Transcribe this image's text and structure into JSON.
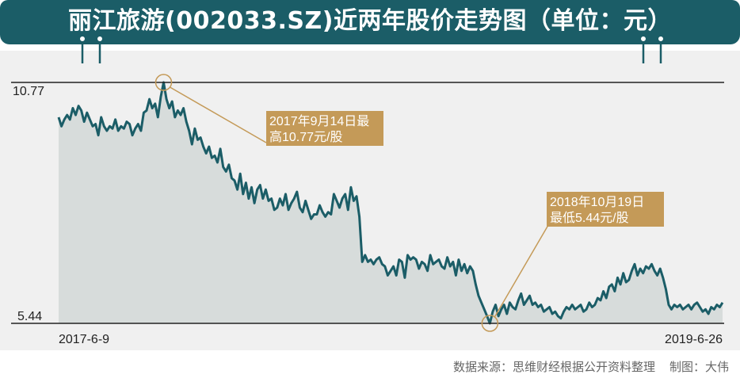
{
  "title": "丽江旅游(002033.SZ)近两年股价走势图（单位：元）",
  "source": "数据来源：思维财经根据公开资料整理",
  "author": "制图：大伟",
  "colors": {
    "banner": "#1b5d67",
    "line": "#1b5d67",
    "area": "#d7dcdb",
    "panel": "#f0f0f0",
    "annotation_box": "#c49a58",
    "annotation_line": "#c49a58"
  },
  "chart_data": {
    "type": "area",
    "title": "丽江旅游(002033.SZ)近两年股价走势图（单位：元）",
    "xlabel": "",
    "ylabel": "",
    "x_start": "2017-6-9",
    "x_end": "2019-6-26",
    "y_ticks": [
      "10.77",
      "5.44"
    ],
    "ylim": [
      5.44,
      10.77
    ],
    "x_tick_labels": [
      "2017-6-9",
      "2019-6-26"
    ],
    "grid": false,
    "values": [
      10.0,
      9.8,
      9.95,
      10.05,
      9.95,
      10.2,
      10.05,
      10.25,
      10.15,
      9.9,
      10.1,
      9.95,
      9.8,
      9.85,
      9.6,
      10.0,
      9.8,
      9.7,
      9.8,
      9.75,
      9.95,
      9.7,
      9.8,
      9.75,
      9.9,
      9.85,
      9.6,
      9.75,
      9.85,
      9.7,
      10.1,
      10.15,
      10.4,
      10.2,
      10.3,
      10.0,
      10.45,
      10.77,
      10.4,
      10.2,
      10.35,
      10.0,
      10.15,
      10.05,
      10.2,
      9.9,
      9.7,
      9.4,
      9.75,
      9.5,
      9.55,
      9.35,
      9.2,
      9.35,
      9.1,
      9.15,
      9.0,
      9.3,
      8.9,
      8.8,
      8.95,
      8.65,
      8.6,
      8.4,
      8.75,
      8.3,
      8.55,
      8.2,
      8.45,
      8.1,
      8.4,
      8.5,
      8.2,
      8.4,
      8.15,
      8.2,
      7.95,
      8.0,
      8.2,
      8.05,
      8.3,
      7.95,
      8.1,
      8.2,
      8.35,
      8.0,
      7.9,
      8.15,
      7.95,
      7.75,
      7.85,
      7.85,
      8.05,
      7.9,
      7.8,
      7.9,
      7.85,
      8.3,
      8.15,
      8.0,
      8.2,
      8.3,
      7.95,
      8.45,
      8.15,
      8.25,
      7.8,
      6.8,
      6.95,
      6.8,
      6.85,
      6.75,
      6.85,
      6.9,
      6.75,
      6.7,
      6.5,
      6.6,
      6.7,
      6.5,
      6.85,
      6.8,
      6.45,
      6.95,
      6.85,
      6.9,
      6.85,
      6.65,
      6.8,
      6.75,
      6.6,
      6.95,
      6.75,
      6.8,
      6.85,
      6.7,
      6.65,
      6.9,
      6.7,
      6.8,
      6.5,
      6.85,
      6.6,
      6.75,
      6.55,
      6.7,
      6.6,
      6.3,
      6.05,
      5.9,
      5.75,
      5.6,
      5.44,
      5.7,
      5.85,
      5.6,
      5.75,
      5.85,
      5.65,
      5.9,
      5.8,
      5.75,
      5.95,
      6.1,
      5.85,
      5.95,
      6.05,
      5.85,
      5.9,
      5.8,
      5.85,
      5.7,
      5.75,
      5.8,
      5.65,
      5.7,
      5.6,
      5.55,
      5.7,
      5.8,
      5.75,
      5.85,
      5.75,
      5.8,
      5.85,
      5.7,
      5.75,
      5.9,
      5.8,
      5.85,
      6.0,
      5.95,
      6.15,
      6.0,
      6.25,
      6.3,
      6.15,
      6.45,
      6.3,
      6.55,
      6.35,
      6.4,
      6.6,
      6.75,
      6.5,
      6.65,
      6.55,
      6.7,
      6.65,
      6.75,
      6.6,
      6.5,
      6.65,
      6.45,
      6.2,
      5.85,
      5.75,
      5.85,
      5.8,
      5.85,
      5.75,
      5.8,
      5.85,
      5.75,
      5.85,
      5.9,
      5.8,
      5.7,
      5.75,
      5.65,
      5.8,
      5.75,
      5.85,
      5.8,
      5.9
    ],
    "annotations": [
      {
        "label": "2017年9月14日最高10.77元/股",
        "line1": "2017年9月14日最",
        "line2": "高10.77元/股",
        "index": 37,
        "value": 10.77
      },
      {
        "label": "2018年10月19日最低5.44元/股",
        "line1": "2018年10月19日",
        "line2": "最低5.44元/股",
        "index": 152,
        "value": 5.44
      }
    ]
  }
}
